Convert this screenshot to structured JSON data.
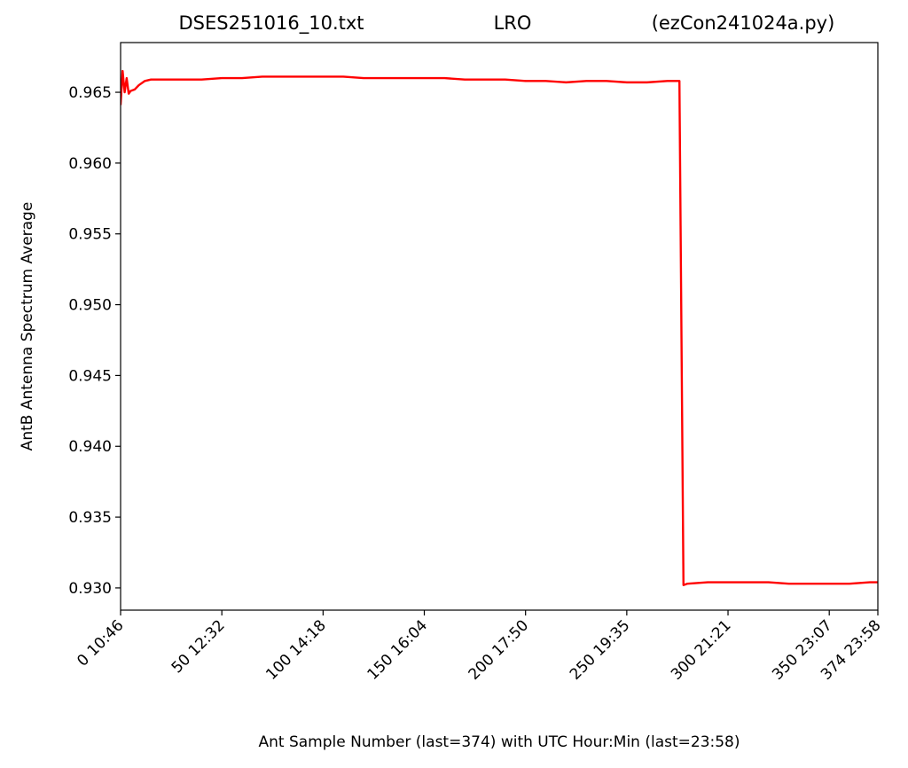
{
  "chart_data": {
    "type": "line",
    "title_parts": [
      "DSES251016_10.txt",
      "LRO",
      "(ezCon241024a.py)"
    ],
    "x_label": "Ant Sample Number (last=374) with UTC Hour:Min (last=23:58)",
    "y_label": "AntB Antenna Spectrum Average",
    "xlim": [
      0,
      374
    ],
    "ylim": [
      0.92843,
      0.96851
    ],
    "xticks": [
      {
        "value": 0,
        "label": "0  10:46"
      },
      {
        "value": 50,
        "label": "50  12:32"
      },
      {
        "value": 100,
        "label": "100  14:18"
      },
      {
        "value": 150,
        "label": "150  16:04"
      },
      {
        "value": 200,
        "label": "200  17:50"
      },
      {
        "value": 250,
        "label": "250  19:35"
      },
      {
        "value": 300,
        "label": "300  21:21"
      },
      {
        "value": 350,
        "label": "350  23:07"
      },
      {
        "value": 374,
        "label": "374  23:58"
      }
    ],
    "yticks": [
      {
        "value": 0.93,
        "label": "0.930"
      },
      0.935,
      {
        "value": 0.94,
        "label": "0.940"
      },
      0.945,
      {
        "value": 0.95,
        "label": "0.950"
      },
      0.955,
      {
        "value": 0.96,
        "label": "0.960"
      },
      0.965
    ],
    "series": [
      {
        "color": "#ff0000",
        "x": [
          0,
          1,
          2,
          3,
          4,
          5,
          7,
          9,
          12,
          15,
          20,
          30,
          40,
          50,
          60,
          70,
          80,
          90,
          100,
          110,
          120,
          130,
          140,
          150,
          160,
          170,
          180,
          190,
          200,
          210,
          220,
          230,
          240,
          250,
          260,
          270,
          276,
          278,
          280,
          290,
          300,
          310,
          320,
          330,
          340,
          350,
          360,
          370,
          374
        ],
        "values": [
          0.9641,
          0.9665,
          0.965,
          0.966,
          0.9649,
          0.9651,
          0.9652,
          0.9655,
          0.9658,
          0.9659,
          0.9659,
          0.9659,
          0.9659,
          0.966,
          0.966,
          0.9661,
          0.9661,
          0.9661,
          0.9661,
          0.9661,
          0.966,
          0.966,
          0.966,
          0.966,
          0.966,
          0.9659,
          0.9659,
          0.9659,
          0.9658,
          0.9658,
          0.9657,
          0.9658,
          0.9658,
          0.9657,
          0.9657,
          0.9658,
          0.9658,
          0.9302,
          0.9303,
          0.9304,
          0.9304,
          0.9304,
          0.9304,
          0.9303,
          0.9303,
          0.9303,
          0.9303,
          0.9304,
          0.9304
        ]
      }
    ]
  }
}
